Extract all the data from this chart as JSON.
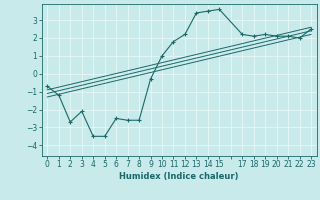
{
  "xlabel": "Humidex (Indice chaleur)",
  "ylabel": "",
  "bg_color": "#c8eaea",
  "grid_color": "#e8f8f8",
  "line_color": "#1a6868",
  "xlim": [
    -0.5,
    23.5
  ],
  "ylim": [
    -4.6,
    3.9
  ],
  "yticks": [
    -4,
    -3,
    -2,
    -1,
    0,
    1,
    2,
    3
  ],
  "curve1_x": [
    0,
    1,
    2,
    3,
    4,
    5,
    6,
    7,
    8,
    9,
    10,
    11,
    12,
    13,
    14,
    15,
    17,
    18,
    19,
    20,
    21,
    22,
    23
  ],
  "curve1_y": [
    -0.7,
    -1.2,
    -2.7,
    -2.1,
    -3.5,
    -3.5,
    -2.5,
    -2.6,
    -2.6,
    -0.3,
    1.0,
    1.8,
    2.2,
    3.4,
    3.5,
    3.6,
    2.2,
    2.1,
    2.2,
    2.1,
    2.1,
    2.0,
    2.5
  ],
  "curve2_x": [
    0,
    23
  ],
  "curve2_y": [
    -1.1,
    2.4
  ],
  "curve3_x": [
    0,
    23
  ],
  "curve3_y": [
    -1.3,
    2.2
  ],
  "curve4_x": [
    0,
    23
  ],
  "curve4_y": [
    -0.9,
    2.6
  ]
}
